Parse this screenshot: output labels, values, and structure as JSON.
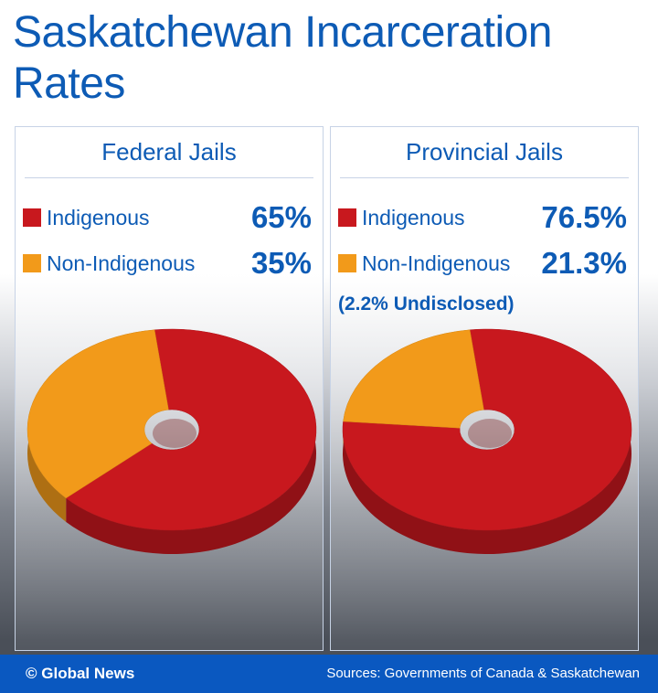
{
  "title": "Saskatchewan Incarceration Rates",
  "chart_data": [
    {
      "type": "pie",
      "title": "Federal Jails",
      "categories": [
        "Indigenous",
        "Non-Indigenous"
      ],
      "values": [
        65,
        35
      ],
      "value_labels": [
        "65%",
        "35%"
      ],
      "colors": [
        "#c8181e",
        "#f29a1a"
      ]
    },
    {
      "type": "pie",
      "title": "Provincial Jails",
      "categories": [
        "Indigenous",
        "Non-Indigenous"
      ],
      "values": [
        76.5,
        21.3
      ],
      "value_labels": [
        "76.5%",
        "21.3%"
      ],
      "colors": [
        "#c8181e",
        "#f29a1a"
      ],
      "annotation": "(2.2% Undisclosed)"
    }
  ],
  "footer": {
    "credit": "© Global News",
    "source": "Sources: Governments of Canada & Saskatchewan"
  }
}
